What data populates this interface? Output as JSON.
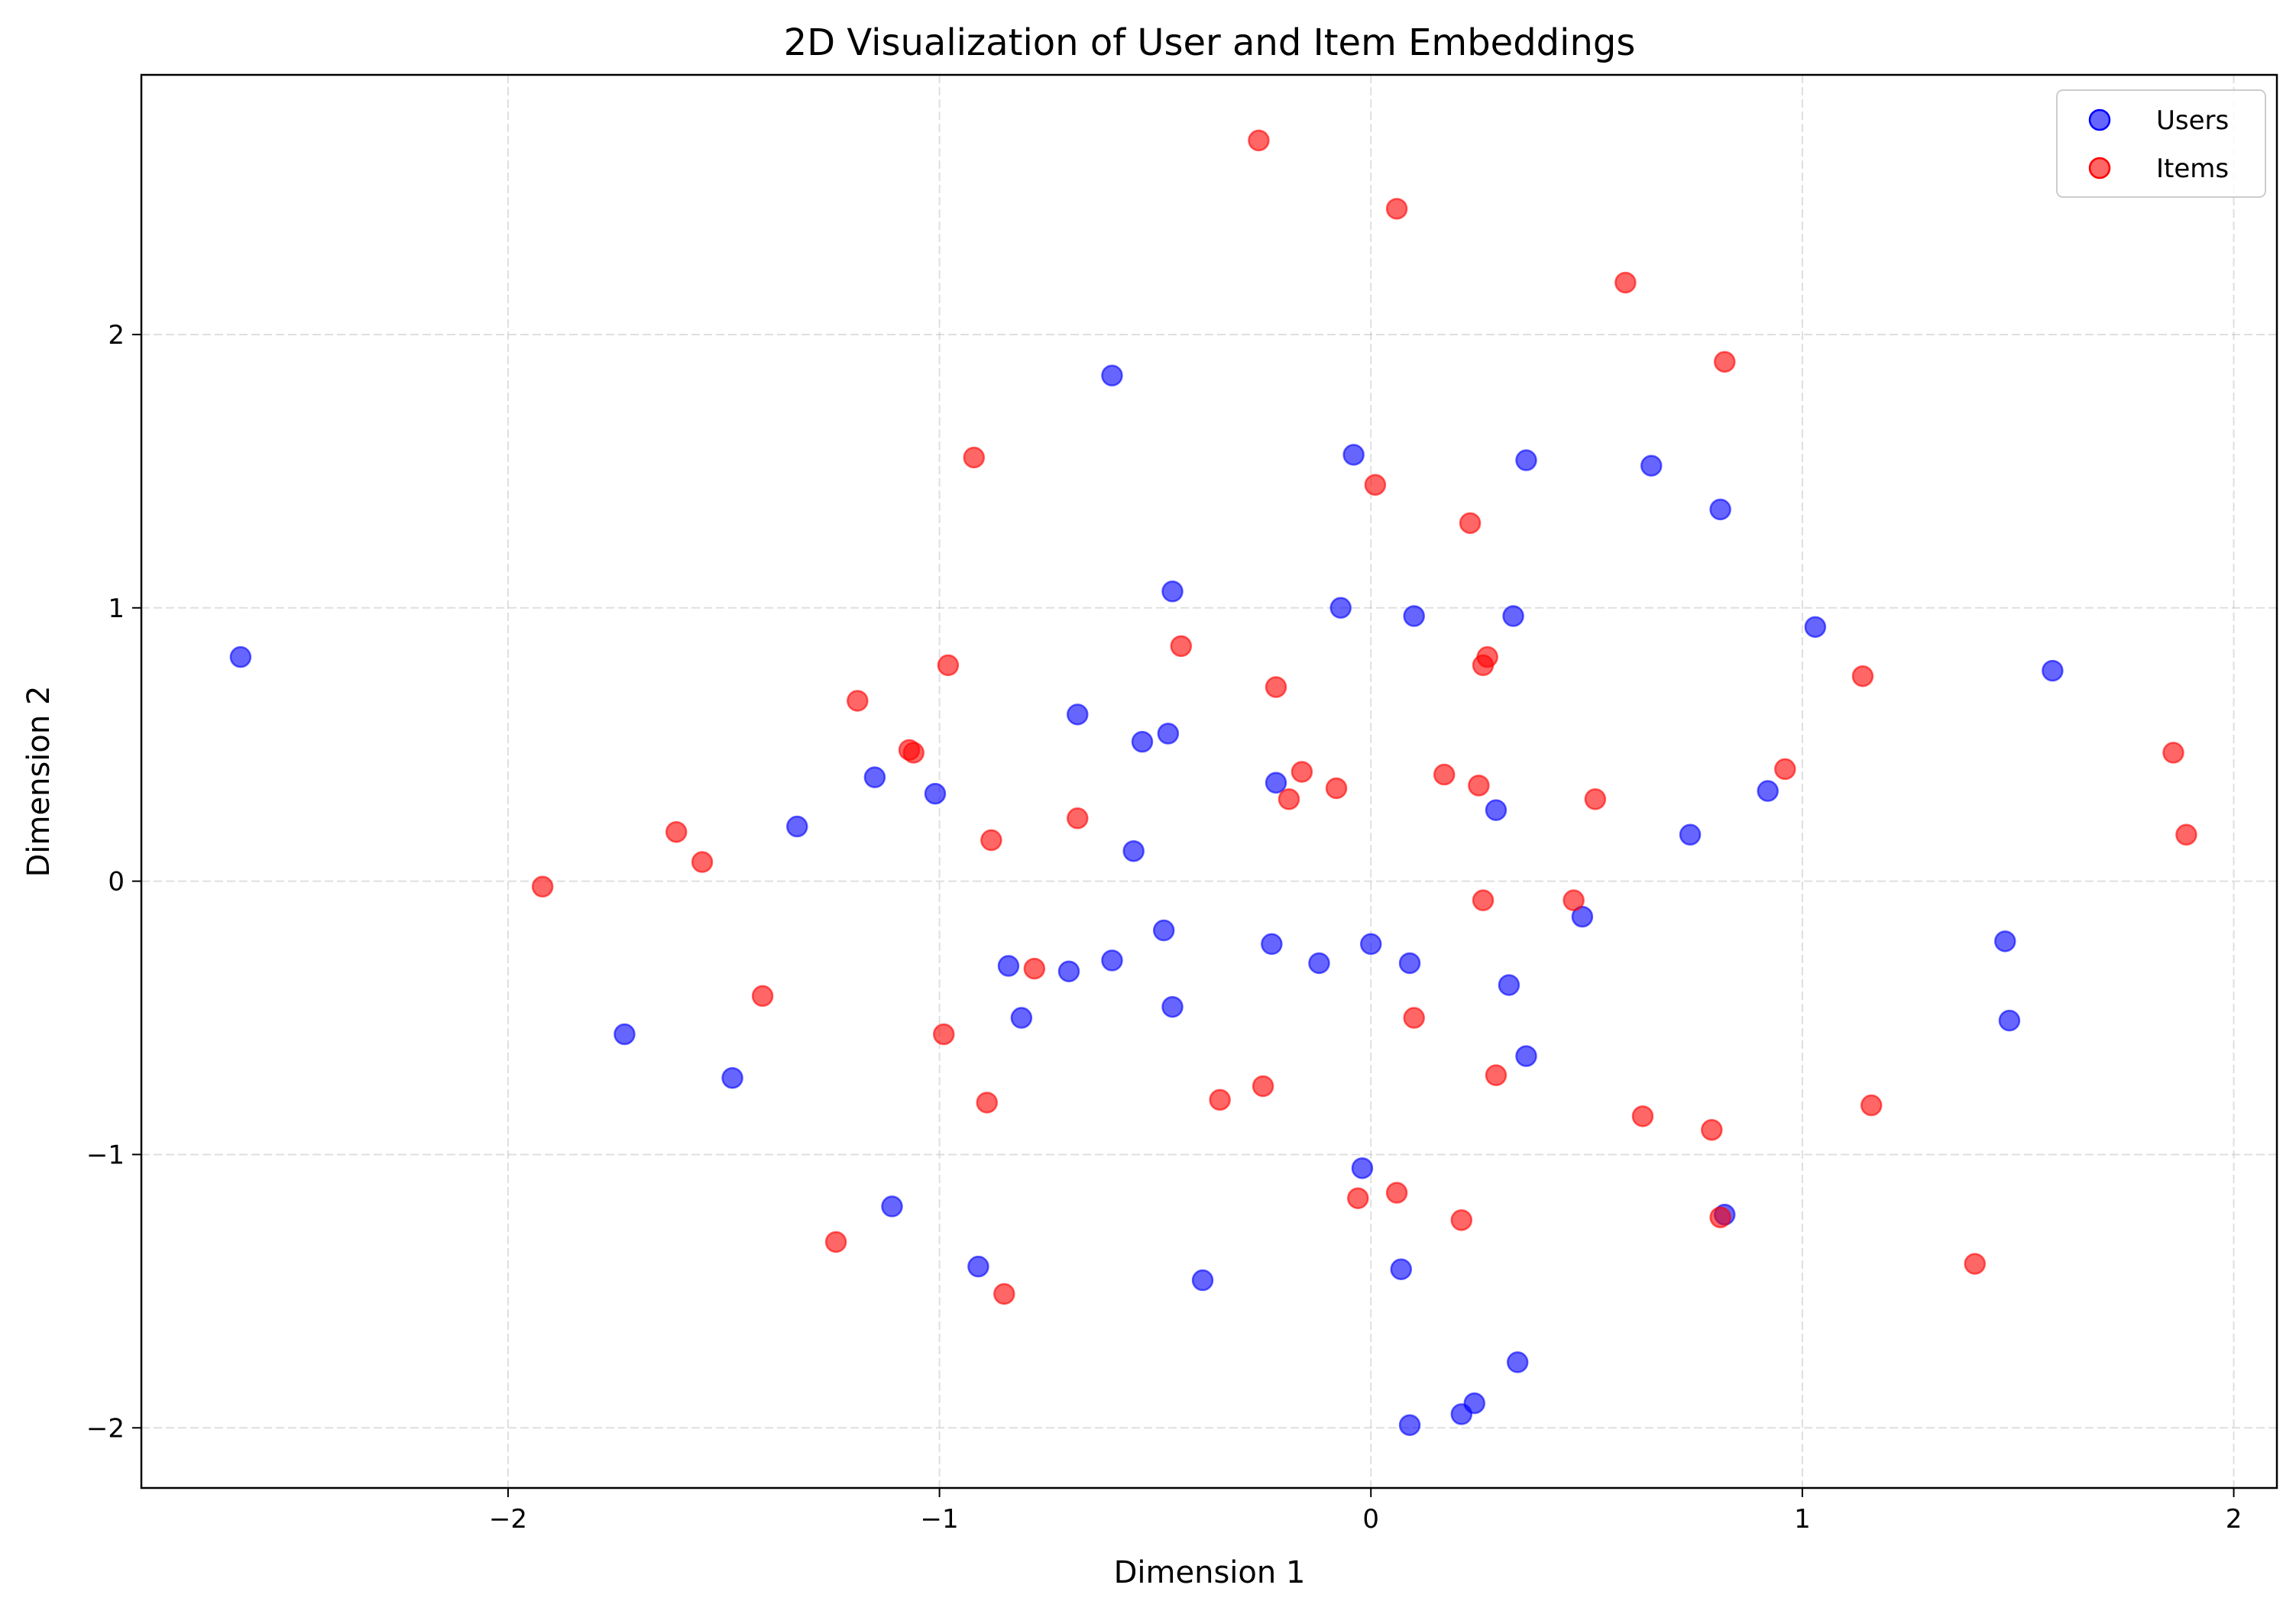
{
  "chart_data": {
    "type": "scatter",
    "title": "2D Visualization of User and Item Embeddings",
    "xlabel": "Dimension 1",
    "ylabel": "Dimension 2",
    "xlim": [
      -2.85,
      2.1
    ],
    "ylim": [
      -2.22,
      2.95
    ],
    "xticks": [
      -2,
      -1,
      0,
      1,
      2
    ],
    "yticks": [
      -2,
      -1,
      0,
      1,
      2
    ],
    "xtick_labels": [
      "−2",
      "−1",
      "0",
      "1",
      "2"
    ],
    "ytick_labels": [
      "−2",
      "−1",
      "0",
      "1",
      "2"
    ],
    "grid": true,
    "legend_position": "top-right",
    "series": [
      {
        "name": "Users",
        "color": "#0000ff",
        "points": [
          [
            -2.62,
            0.82
          ],
          [
            -0.6,
            1.85
          ],
          [
            -0.04,
            1.56
          ],
          [
            0.36,
            1.54
          ],
          [
            0.65,
            1.52
          ],
          [
            0.81,
            1.36
          ],
          [
            -0.46,
            1.06
          ],
          [
            -0.07,
            1.0
          ],
          [
            0.1,
            0.97
          ],
          [
            0.33,
            0.97
          ],
          [
            1.03,
            0.93
          ],
          [
            1.58,
            0.77
          ],
          [
            -0.68,
            0.61
          ],
          [
            -0.53,
            0.51
          ],
          [
            -0.47,
            0.54
          ],
          [
            -1.15,
            0.38
          ],
          [
            -1.01,
            0.32
          ],
          [
            -0.22,
            0.36
          ],
          [
            0.29,
            0.26
          ],
          [
            0.92,
            0.33
          ],
          [
            -1.33,
            0.2
          ],
          [
            -0.55,
            0.11
          ],
          [
            0.74,
            0.17
          ],
          [
            -0.48,
            -0.18
          ],
          [
            -0.23,
            -0.23
          ],
          [
            0.0,
            -0.23
          ],
          [
            0.49,
            -0.13
          ],
          [
            1.47,
            -0.22
          ],
          [
            -0.84,
            -0.31
          ],
          [
            -0.7,
            -0.33
          ],
          [
            -0.6,
            -0.29
          ],
          [
            -0.12,
            -0.3
          ],
          [
            0.09,
            -0.3
          ],
          [
            0.32,
            -0.38
          ],
          [
            -0.81,
            -0.5
          ],
          [
            -0.46,
            -0.46
          ],
          [
            1.48,
            -0.51
          ],
          [
            -1.73,
            -0.56
          ],
          [
            -1.48,
            -0.72
          ],
          [
            0.36,
            -0.64
          ],
          [
            -0.02,
            -1.05
          ],
          [
            -1.11,
            -1.19
          ],
          [
            0.82,
            -1.22
          ],
          [
            -0.91,
            -1.41
          ],
          [
            0.07,
            -1.42
          ],
          [
            -0.39,
            -1.46
          ],
          [
            0.34,
            -1.76
          ],
          [
            0.24,
            -1.91
          ],
          [
            0.21,
            -1.95
          ],
          [
            0.09,
            -1.99
          ]
        ]
      },
      {
        "name": "Items",
        "color": "#ff0000",
        "points": [
          [
            -0.26,
            2.71
          ],
          [
            0.06,
            2.46
          ],
          [
            0.59,
            2.19
          ],
          [
            0.82,
            1.9
          ],
          [
            -0.92,
            1.55
          ],
          [
            0.01,
            1.45
          ],
          [
            0.23,
            1.31
          ],
          [
            -0.44,
            0.86
          ],
          [
            -0.98,
            0.79
          ],
          [
            0.27,
            0.82
          ],
          [
            0.26,
            0.79
          ],
          [
            -0.22,
            0.71
          ],
          [
            1.14,
            0.75
          ],
          [
            -1.19,
            0.66
          ],
          [
            -1.07,
            0.48
          ],
          [
            -1.06,
            0.47
          ],
          [
            1.86,
            0.47
          ],
          [
            0.96,
            0.41
          ],
          [
            -0.16,
            0.4
          ],
          [
            0.17,
            0.39
          ],
          [
            -0.08,
            0.34
          ],
          [
            0.25,
            0.35
          ],
          [
            -0.19,
            0.3
          ],
          [
            0.52,
            0.3
          ],
          [
            -0.68,
            0.23
          ],
          [
            -1.61,
            0.18
          ],
          [
            -0.88,
            0.15
          ],
          [
            1.89,
            0.17
          ],
          [
            -1.55,
            0.07
          ],
          [
            -1.92,
            -0.02
          ],
          [
            0.26,
            -0.07
          ],
          [
            0.47,
            -0.07
          ],
          [
            -0.78,
            -0.32
          ],
          [
            -1.41,
            -0.42
          ],
          [
            0.1,
            -0.5
          ],
          [
            -0.99,
            -0.56
          ],
          [
            0.29,
            -0.71
          ],
          [
            -0.25,
            -0.75
          ],
          [
            -0.35,
            -0.8
          ],
          [
            -0.89,
            -0.81
          ],
          [
            1.16,
            -0.82
          ],
          [
            0.63,
            -0.86
          ],
          [
            0.79,
            -0.91
          ],
          [
            -0.03,
            -1.16
          ],
          [
            0.06,
            -1.14
          ],
          [
            0.21,
            -1.24
          ],
          [
            0.81,
            -1.23
          ],
          [
            -1.24,
            -1.32
          ],
          [
            1.4,
            -1.4
          ],
          [
            -0.85,
            -1.51
          ]
        ]
      }
    ]
  }
}
